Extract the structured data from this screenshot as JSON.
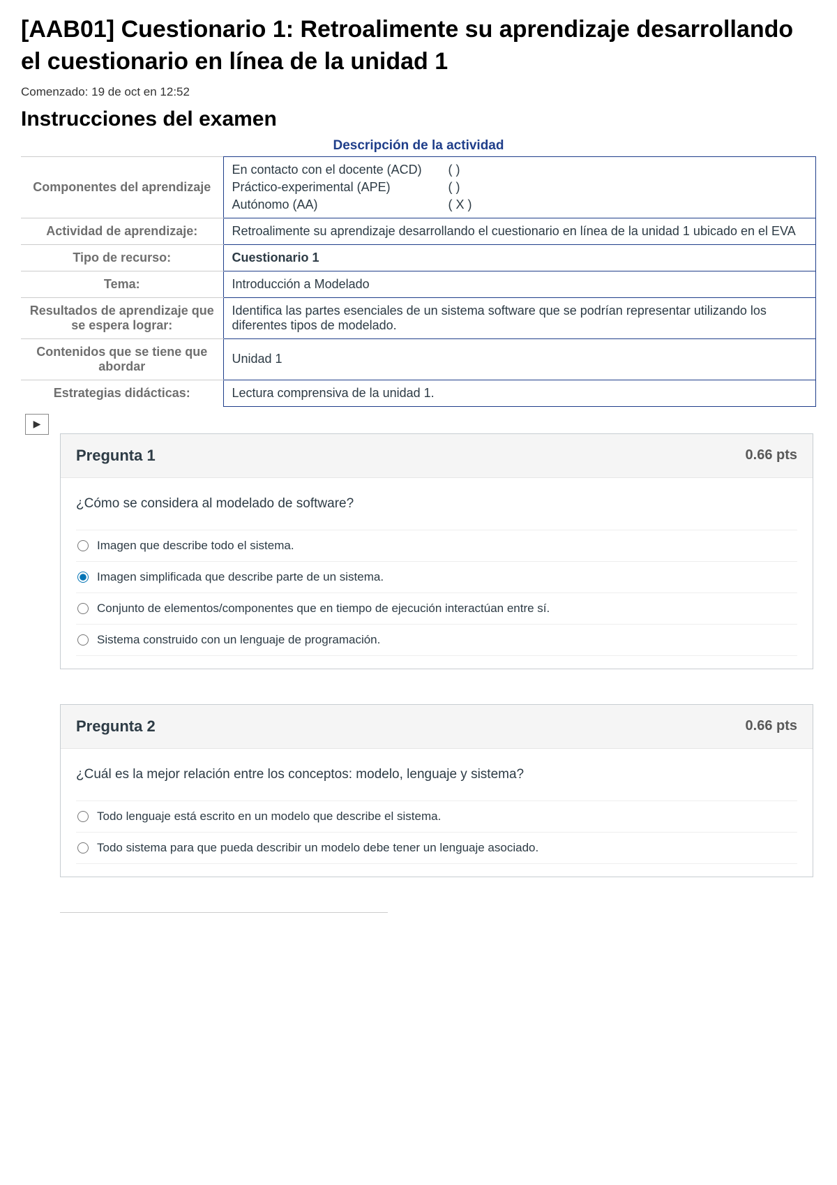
{
  "title": "[AAB01] Cuestionario 1: Retroalimente su aprendizaje desarrollando el cuestionario en línea de la unidad 1",
  "started_at": "Comenzado: 19 de oct en 12:52",
  "instructions_heading": "Instrucciones del examen",
  "activity_caption": "Descripción de la actividad",
  "table": {
    "rows": [
      {
        "label": "Componentes del aprendizaje",
        "components": [
          {
            "name": "En contacto con el docente (ACD)",
            "mark": "(   )"
          },
          {
            "name": "Práctico-experimental (APE)",
            "mark": "(   )"
          },
          {
            "name": "Autónomo (AA)",
            "mark": "( X )"
          }
        ]
      },
      {
        "label": "Actividad de aprendizaje:",
        "value": "Retroalimente su aprendizaje desarrollando el cuestionario en línea de la unidad 1 ubicado en el EVA"
      },
      {
        "label": "Tipo de recurso:",
        "value": "Cuestionario 1",
        "bold": true
      },
      {
        "label": "Tema:",
        "value": "Introducción a Modelado"
      },
      {
        "label": "Resultados de aprendizaje que se espera lograr:",
        "value": "Identifica las partes esenciales de un sistema software que se podrían representar utilizando los diferentes tipos de modelado."
      },
      {
        "label": "Contenidos que se tiene que abordar",
        "value": "Unidad 1"
      },
      {
        "label": "Estrategias didácticas:",
        "value": "Lectura comprensiva de la unidad 1."
      }
    ]
  },
  "flag_icon": "▶",
  "questions": [
    {
      "number": "Pregunta 1",
      "points": "0.66 pts",
      "text": "¿Cómo se considera al modelado de software?",
      "answers": [
        {
          "text": "Imagen que describe todo el sistema.",
          "selected": false
        },
        {
          "text": "Imagen simplificada que describe parte de un sistema.",
          "selected": true
        },
        {
          "text": "Conjunto de elementos/componentes que en tiempo de ejecución interactúan entre sí.",
          "selected": false
        },
        {
          "text": "Sistema construido con un lenguaje de programación.",
          "selected": false
        }
      ]
    },
    {
      "number": "Pregunta 2",
      "points": "0.66 pts",
      "text": "¿Cuál es la mejor relación entre los conceptos: modelo, lenguaje y sistema?",
      "answers": [
        {
          "text": "Todo lenguaje está escrito en un modelo que describe el sistema.",
          "selected": false
        },
        {
          "text": "Todo sistema para que pueda describir un modelo debe tener un lenguaje asociado.",
          "selected": false
        }
      ]
    }
  ]
}
